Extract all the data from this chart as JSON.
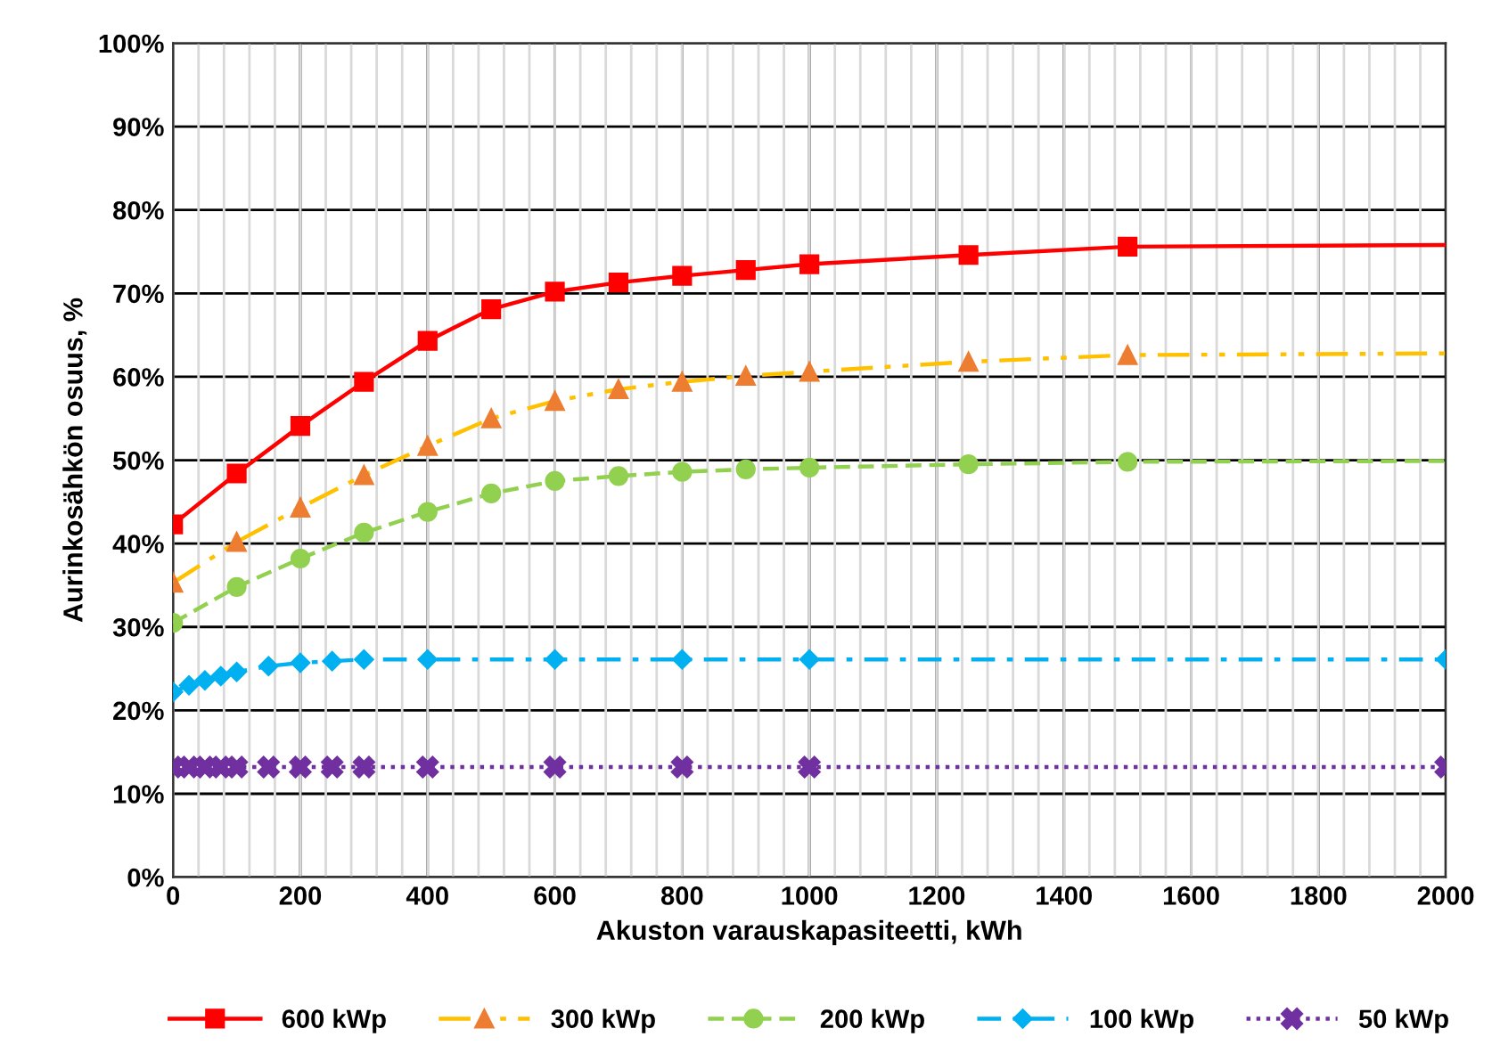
{
  "chart_data": {
    "type": "line",
    "xlabel": "Akuston varauskapasiteetti, kWh",
    "ylabel": "Aurinkosähkön osuus, %",
    "xlim": [
      0,
      2000
    ],
    "xticks": [
      0,
      200,
      400,
      600,
      800,
      1000,
      1200,
      1400,
      1600,
      1800,
      2000
    ],
    "ylim": [
      0,
      100
    ],
    "yticks": [
      {
        "value": 0,
        "label": "0%"
      },
      {
        "value": 10,
        "label": "10%"
      },
      {
        "value": 20,
        "label": "20%"
      },
      {
        "value": 30,
        "label": "30%"
      },
      {
        "value": 40,
        "label": "40%"
      },
      {
        "value": 50,
        "label": "50%"
      },
      {
        "value": 60,
        "label": "60%"
      },
      {
        "value": 70,
        "label": "70%"
      },
      {
        "value": 80,
        "label": "80%"
      },
      {
        "value": 90,
        "label": "90%"
      },
      {
        "value": 100,
        "label": "100%"
      }
    ],
    "grid": true,
    "legend": "bottom",
    "series": [
      {
        "name": "600 kWp",
        "color": "#ff0000",
        "marker": "square",
        "line_style": "solid",
        "x": [
          0,
          100,
          200,
          300,
          400,
          500,
          600,
          700,
          800,
          900,
          1000,
          1250,
          1500,
          2000
        ],
        "values": [
          42.3,
          48.4,
          54.1,
          59.4,
          64.3,
          68.1,
          70.2,
          71.3,
          72.1,
          72.8,
          73.5,
          74.6,
          75.6,
          75.8
        ],
        "colors": [
          "#ff0000",
          "#ff0000",
          "#ff0000",
          "#ff0000",
          "#ff0000",
          "#ff0000",
          "#ff0000",
          "#ff0000",
          "#ff0000",
          "#ff0000",
          "#ff0000",
          "#ff0000",
          "#ff0000",
          null
        ]
      },
      {
        "name": "300 kWp",
        "color": "#ffc000",
        "marker": "triangle",
        "line_style": "dashdotdot",
        "x": [
          0,
          100,
          200,
          300,
          400,
          500,
          600,
          700,
          800,
          900,
          1000,
          1250,
          1500,
          2000
        ],
        "values": [
          35.3,
          40.2,
          44.3,
          48.2,
          51.7,
          55.0,
          57.1,
          58.5,
          59.4,
          60.1,
          60.6,
          61.8,
          62.6,
          62.8
        ],
        "colors": [
          "#ed7d31",
          "#ed7d31",
          "#ed7d31",
          "#ed7d31",
          "#ed7d31",
          "#ed7d31",
          "#ed7d31",
          "#ed7d31",
          "#ed7d31",
          "#ed7d31",
          "#ed7d31",
          "#ed7d31",
          "#ed7d31",
          null
        ]
      },
      {
        "name": "200 kWp",
        "color": "#92d050",
        "marker": "circle",
        "line_style": "dashed",
        "x": [
          0,
          100,
          200,
          300,
          400,
          500,
          600,
          700,
          800,
          900,
          1000,
          1250,
          1500,
          2000
        ],
        "values": [
          30.5,
          34.8,
          38.2,
          41.3,
          43.8,
          46.0,
          47.5,
          48.1,
          48.6,
          48.9,
          49.1,
          49.5,
          49.8,
          49.9
        ],
        "colors": [
          "#92d050",
          "#92d050",
          "#92d050",
          "#92d050",
          "#92d050",
          "#92d050",
          "#92d050",
          "#92d050",
          "#92d050",
          "#92d050",
          "#92d050",
          "#92d050",
          "#92d050",
          null
        ]
      },
      {
        "name": "100 kWp",
        "color": "#00b0f0",
        "marker": "diamond",
        "line_style": "dashdot",
        "x": [
          0,
          25,
          50,
          75,
          100,
          150,
          200,
          250,
          300,
          400,
          600,
          800,
          1000,
          2000
        ],
        "values": [
          22.2,
          23.0,
          23.6,
          24.1,
          24.6,
          25.3,
          25.7,
          25.9,
          26.1,
          26.1,
          26.1,
          26.1,
          26.1,
          26.1
        ]
      },
      {
        "name": "50 kWp",
        "color": "#7030a0",
        "marker": "cross",
        "line_style": "dotted",
        "x": [
          0,
          25,
          50,
          75,
          100,
          150,
          200,
          250,
          300,
          400,
          600,
          800,
          1000,
          2000
        ],
        "values": [
          13.2,
          13.2,
          13.2,
          13.2,
          13.2,
          13.2,
          13.2,
          13.2,
          13.2,
          13.2,
          13.2,
          13.2,
          13.2,
          13.2
        ]
      }
    ]
  }
}
